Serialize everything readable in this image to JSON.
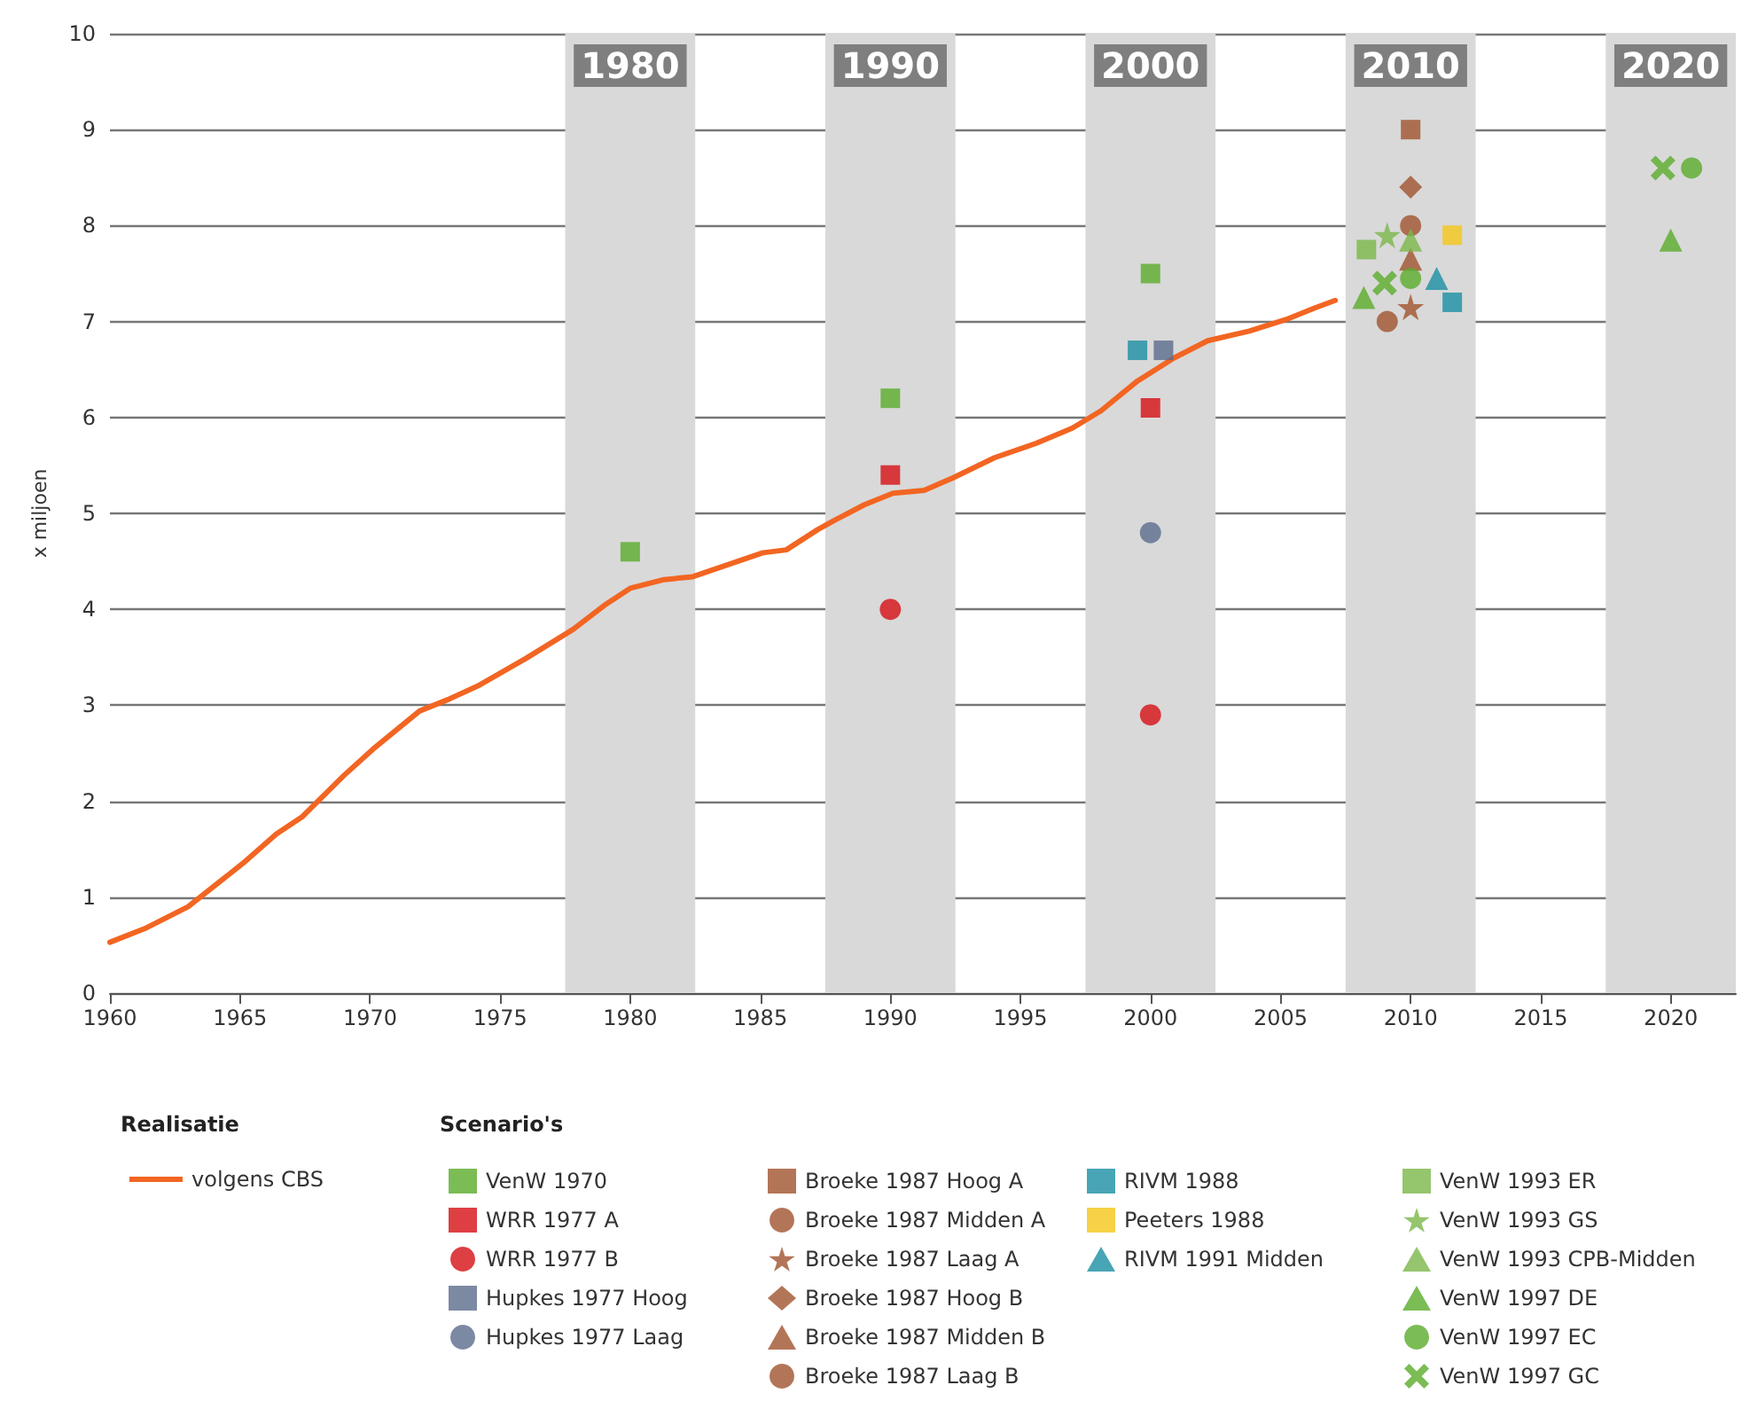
{
  "chart_data": {
    "type": "scatter",
    "ylabel": "x miljoen",
    "xlim": [
      1960,
      2022.5
    ],
    "xticks": [
      1960,
      1965,
      1970,
      1975,
      1980,
      1985,
      1990,
      1995,
      2000,
      2005,
      2010,
      2015,
      2020
    ],
    "ylim": [
      0,
      10
    ],
    "yticks": [
      0,
      1,
      2,
      3,
      4,
      5,
      6,
      7,
      8,
      9,
      10
    ],
    "grid": "y",
    "legend": "bottom",
    "legend_title": "Scenario's",
    "annotations": [
      "Realisatie"
    ],
    "bands": [
      {
        "axis": "x",
        "from": 1977.5,
        "to": 1982.5,
        "label": "1980",
        "color": "#d9d9d9"
      },
      {
        "axis": "x",
        "from": 1987.5,
        "to": 1992.5,
        "label": "1990",
        "color": "#d9d9d9"
      },
      {
        "axis": "x",
        "from": 1997.5,
        "to": 2002.5,
        "label": "2000",
        "color": "#d9d9d9"
      },
      {
        "axis": "x",
        "from": 2007.5,
        "to": 2012.5,
        "label": "2010",
        "color": "#d9d9d9"
      },
      {
        "axis": "x",
        "from": 2017.5,
        "to": 2022.5,
        "label": "2020",
        "color": "#d9d9d9"
      }
    ],
    "series": [
      {
        "name": "volgens CBS",
        "type": "line",
        "marker": "none",
        "line_style": "solid",
        "color": "#f26522",
        "x": [
          1960,
          1961.4,
          1963,
          1965.1,
          1966.4,
          1967.4,
          1969,
          1970.1,
          1971.9,
          1973,
          1974.2,
          1976,
          1977.8,
          1979,
          1980,
          1981.3,
          1982.4,
          1985.1,
          1986,
          1987.2,
          1987.8,
          1989,
          1990.1,
          1991.3,
          1992.4,
          1994,
          1995.6,
          1997,
          1998.1,
          1999.5,
          2000.9,
          2002.2,
          2003.8,
          2005.2,
          2006.3,
          2007.1
        ],
        "values": [
          0.53,
          0.68,
          0.9,
          1.35,
          1.66,
          1.84,
          2.27,
          2.54,
          2.94,
          3.06,
          3.21,
          3.49,
          3.79,
          4.04,
          4.22,
          4.31,
          4.34,
          4.59,
          4.62,
          4.83,
          4.92,
          5.09,
          5.21,
          5.24,
          5.37,
          5.58,
          5.73,
          5.89,
          6.07,
          6.38,
          6.62,
          6.8,
          6.9,
          7.02,
          7.14,
          7.22
        ]
      },
      {
        "name": "VenW 1970",
        "marker": "square",
        "color": "#5aab2a",
        "x": [
          1980,
          1990,
          2000
        ],
        "values": [
          4.6,
          6.2,
          7.5
        ]
      },
      {
        "name": "WRR 1977 A",
        "marker": "square",
        "color": "#d40f14",
        "x": [
          1990,
          2000
        ],
        "values": [
          5.4,
          6.1
        ]
      },
      {
        "name": "WRR 1977 B",
        "marker": "circle",
        "color": "#d40f14",
        "x": [
          1990,
          2000
        ],
        "values": [
          4.0,
          2.9
        ]
      },
      {
        "name": "Hupkes 1977 Hoog",
        "marker": "square",
        "color": "#5b6b8c",
        "x": [
          2000.5
        ],
        "values": [
          6.7
        ]
      },
      {
        "name": "Hupkes 1977 Laag",
        "marker": "circle",
        "color": "#5b6b8c",
        "x": [
          2000
        ],
        "values": [
          4.8
        ]
      },
      {
        "name": "Broeke 1987 Hoog A",
        "marker": "square",
        "color": "#a0522d",
        "x": [
          2010
        ],
        "values": [
          9.0
        ]
      },
      {
        "name": "Broeke 1987 Midden A",
        "marker": "circle",
        "color": "#a0522d",
        "x": [
          2010
        ],
        "values": [
          8.0
        ]
      },
      {
        "name": "Broeke 1987 Laag A",
        "marker": "star",
        "color": "#a0522d",
        "x": [
          2010
        ],
        "values": [
          7.15
        ]
      },
      {
        "name": "Broeke 1987 Hoog B",
        "marker": "diamond",
        "color": "#a0522d",
        "x": [
          2010
        ],
        "values": [
          8.4
        ]
      },
      {
        "name": "Broeke 1987 Midden B",
        "marker": "triangle",
        "color": "#a0522d",
        "x": [
          2010
        ],
        "values": [
          7.65
        ]
      },
      {
        "name": "Broeke 1987 Laag B",
        "marker": "circle",
        "color": "#a0522d",
        "x": [
          2009.1
        ],
        "values": [
          7.0
        ]
      },
      {
        "name": "RIVM 1988",
        "marker": "square",
        "color": "#1a8fa3",
        "x": [
          1999.5,
          2011.6
        ],
        "values": [
          6.7,
          7.2
        ]
      },
      {
        "name": "Peeters 1988",
        "marker": "square",
        "color": "#f5c518",
        "x": [
          2011.6
        ],
        "values": [
          7.9
        ]
      },
      {
        "name": "RIVM 1991 Midden",
        "marker": "triangle",
        "color": "#1a8fa3",
        "x": [
          2011
        ],
        "values": [
          7.45
        ]
      },
      {
        "name": "VenW 1993 ER",
        "marker": "square",
        "color": "#7ab648",
        "x": [
          2008.3
        ],
        "values": [
          7.75
        ]
      },
      {
        "name": "VenW 1993 GS",
        "marker": "star",
        "color": "#7ab648",
        "x": [
          2009.1
        ],
        "values": [
          7.9
        ]
      },
      {
        "name": "VenW 1993 CPB-Midden",
        "marker": "triangle",
        "color": "#7ab648",
        "x": [
          2010
        ],
        "values": [
          7.85
        ]
      },
      {
        "name": "VenW 1997 DE",
        "marker": "triangle",
        "color": "#5aab2a",
        "x": [
          2008.2,
          2020
        ],
        "values": [
          7.25,
          7.85
        ]
      },
      {
        "name": "VenW 1997 EC",
        "marker": "circle",
        "color": "#5aab2a",
        "x": [
          2010,
          2020.8
        ],
        "values": [
          7.45,
          8.6
        ]
      },
      {
        "name": "VenW 1997 GC",
        "marker": "cross",
        "color": "#5aab2a",
        "x": [
          2009,
          2019.7
        ],
        "values": [
          7.4,
          8.6
        ]
      }
    ]
  }
}
